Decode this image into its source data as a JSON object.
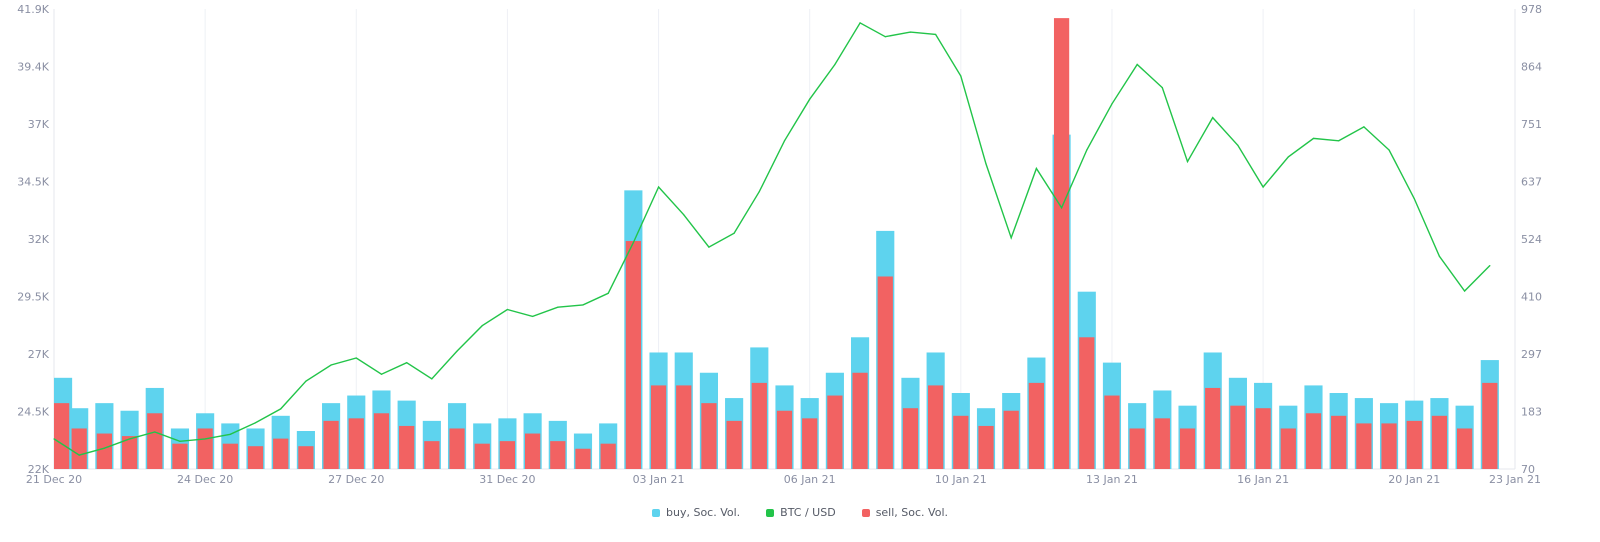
{
  "chart_data": {
    "type": "bar",
    "title": "",
    "x_tick_labels": [
      "21 Dec 20",
      "24 Dec 20",
      "27 Dec 20",
      "31 Dec 20",
      "03 Jan 21",
      "06 Jan 21",
      "10 Jan 21",
      "13 Jan 21",
      "16 Jan 21",
      "20 Jan 21",
      "23 Jan 21"
    ],
    "x_tick_days": [
      0,
      3,
      6,
      9,
      12,
      15,
      18,
      21,
      24,
      27,
      29
    ],
    "x_range_days": [
      0,
      29
    ],
    "left_axis": {
      "label": "",
      "ticks": [
        "22K",
        "24.5K",
        "27K",
        "29.5K",
        "32K",
        "34.5K",
        "37K",
        "39.4K",
        "41.9K"
      ],
      "range": [
        22000,
        41900
      ]
    },
    "right_axis": {
      "label": "",
      "ticks": [
        "70",
        "183",
        "297",
        "410",
        "524",
        "637",
        "751",
        "864",
        "978"
      ],
      "range": [
        70,
        978
      ]
    },
    "grid": "vertical",
    "legend_position": "bottom-center",
    "series": [
      {
        "name": "buy, Soc. Vol.",
        "color": "#5ed3ee",
        "axis": "right",
        "kind": "bar",
        "x_days": [
          0.0,
          0.5,
          1.0,
          1.5,
          2.0,
          2.5,
          3.0,
          3.5,
          4.0,
          4.5,
          5.0,
          5.5,
          6.0,
          6.5,
          7.0,
          7.5,
          8.0,
          8.5,
          9.0,
          9.5,
          10.0,
          10.5,
          11.0,
          11.5,
          12.0,
          12.5,
          13.0,
          13.5,
          14.0,
          14.5,
          15.0,
          15.5,
          16.0,
          16.5,
          17.0,
          17.5,
          18.0,
          18.5,
          19.0,
          19.5,
          20.0,
          20.5,
          21.0,
          21.5,
          22.0,
          22.5,
          23.0,
          23.5,
          24.0,
          24.5,
          25.0,
          25.5,
          26.0,
          26.5,
          27.0,
          27.5,
          28.0,
          28.5
        ],
        "values": [
          250,
          190,
          200,
          185,
          230,
          150,
          180,
          160,
          150,
          175,
          145,
          200,
          215,
          225,
          205,
          165,
          200,
          160,
          170,
          180,
          165,
          140,
          160,
          620,
          300,
          300,
          260,
          210,
          310,
          235,
          210,
          260,
          330,
          540,
          250,
          300,
          220,
          190,
          220,
          290,
          730,
          420,
          280,
          200,
          225,
          195,
          300,
          250,
          240,
          195,
          235,
          220,
          210,
          200,
          205,
          210,
          195,
          285
        ]
      },
      {
        "name": "sell, Soc. Vol.",
        "color": "#f26262",
        "axis": "right",
        "kind": "bar",
        "x_days": [
          0.0,
          0.5,
          1.0,
          1.5,
          2.0,
          2.5,
          3.0,
          3.5,
          4.0,
          4.5,
          5.0,
          5.5,
          6.0,
          6.5,
          7.0,
          7.5,
          8.0,
          8.5,
          9.0,
          9.5,
          10.0,
          10.5,
          11.0,
          11.5,
          12.0,
          12.5,
          13.0,
          13.5,
          14.0,
          14.5,
          15.0,
          15.5,
          16.0,
          16.5,
          17.0,
          17.5,
          18.0,
          18.5,
          19.0,
          19.5,
          20.0,
          20.5,
          21.0,
          21.5,
          22.0,
          22.5,
          23.0,
          23.5,
          24.0,
          24.5,
          25.0,
          25.5,
          26.0,
          26.5,
          27.0,
          27.5,
          28.0,
          28.5
        ],
        "values": [
          200,
          150,
          140,
          135,
          180,
          120,
          150,
          120,
          115,
          130,
          115,
          165,
          170,
          180,
          155,
          125,
          150,
          120,
          125,
          140,
          125,
          110,
          120,
          520,
          235,
          235,
          200,
          165,
          240,
          185,
          170,
          215,
          260,
          450,
          190,
          235,
          175,
          155,
          185,
          240,
          960,
          330,
          215,
          150,
          170,
          150,
          230,
          195,
          190,
          150,
          180,
          175,
          160,
          160,
          165,
          175,
          150,
          240
        ]
      },
      {
        "name": "BTC / USD",
        "color": "#22c449",
        "axis": "left",
        "kind": "line",
        "x_days": [
          0.0,
          0.5,
          1.0,
          1.5,
          2.0,
          2.5,
          3.0,
          3.5,
          4.0,
          4.5,
          5.0,
          5.5,
          6.0,
          6.5,
          7.0,
          7.5,
          8.0,
          8.5,
          9.0,
          9.5,
          10.0,
          10.5,
          11.0,
          11.5,
          12.0,
          12.5,
          13.0,
          13.5,
          14.0,
          14.5,
          15.0,
          15.5,
          16.0,
          16.5,
          17.0,
          17.5,
          18.0,
          18.5,
          19.0,
          19.5,
          20.0,
          20.5,
          21.0,
          21.5,
          22.0,
          22.5,
          23.0,
          23.5,
          24.0,
          24.5,
          25.0,
          25.5,
          26.0,
          26.5,
          27.0,
          27.5,
          28.0,
          28.5
        ],
        "values": [
          23300,
          22600,
          22900,
          23300,
          23600,
          23200,
          23300,
          23500,
          24000,
          24600,
          25800,
          26500,
          26800,
          26100,
          26600,
          25900,
          27100,
          28200,
          28900,
          28600,
          29000,
          29100,
          29600,
          31800,
          34200,
          33000,
          31600,
          32200,
          34000,
          36200,
          38000,
          39500,
          41300,
          40700,
          40900,
          40800,
          39000,
          35200,
          32000,
          35000,
          33300,
          35800,
          37800,
          39500,
          38500,
          35300,
          37200,
          36000,
          34200,
          35500,
          36300,
          36200,
          36800,
          35800,
          33700,
          31200,
          29700,
          30800
        ]
      }
    ]
  },
  "legend": {
    "buy_label": "buy, Soc. Vol.",
    "btc_label": "BTC / USD",
    "sell_label": "sell, Soc. Vol."
  }
}
